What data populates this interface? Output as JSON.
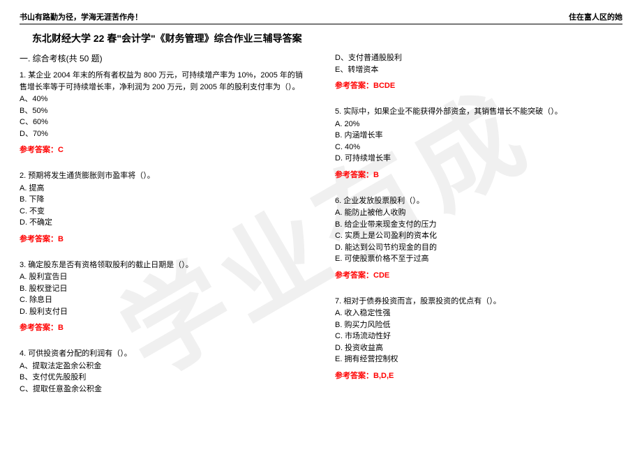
{
  "watermark": "学业有成",
  "header": {
    "left": "书山有路勤为径，学海无涯苦作舟！",
    "right": "住在富人区的她"
  },
  "title": "东北财经大学 22 春\"会计学\"《财务管理》综合作业三辅导答案",
  "section": "一. 综合考核(共 50 题)",
  "answerPrefix": "参考答案：",
  "left": {
    "q1": {
      "stem": "1. 某企业 2004 年末的所有者权益为 800 万元，可持续增产率为 10%，2005 年的销售增长率等于可持续增长率，净利润为 200 万元，则 2005 年的股利支付率为（）。",
      "a": "A、40%",
      "b": "B、50%",
      "c": "C、60%",
      "d": "D、70%",
      "ans": "C"
    },
    "q2": {
      "stem": "2. 预期将发生通货膨胀则市盈率将（）。",
      "a": "A. 提高",
      "b": "B. 下降",
      "c": "C. 不变",
      "d": "D. 不确定",
      "ans": "B"
    },
    "q3": {
      "stem": "3. 确定股东是否有资格领取股利的截止日期是（）。",
      "a": "A. 股利宣告日",
      "b": "B. 股权登记日",
      "c": "C. 除息日",
      "d": "D. 股利支付日",
      "ans": "B"
    },
    "q4": {
      "stem": "4. 可供投资者分配的利润有（）。",
      "a": "A、提取法定盈余公积金",
      "b": "B、支付优先股股利",
      "c": "C、提取任意盈余公积金"
    }
  },
  "right": {
    "q4cont": {
      "d": "D、支付普通股股利",
      "e": "E、转增资本",
      "ans": "BCDE"
    },
    "q5": {
      "stem": "5. 实际中，如果企业不能获得外部资金，其销售增长不能突破（）。",
      "a": "A. 20%",
      "b": "B. 内涵增长率",
      "c": "C. 40%",
      "d": "D. 可持续增长率",
      "ans": "B"
    },
    "q6": {
      "stem": "6. 企业发放股票股利（）。",
      "a": "A. 能防止被他人收购",
      "b": "B. 给企业带来现金支付的压力",
      "c": "C. 实质上是公司盈利的资本化",
      "d": "D. 能达到公司节约现金的目的",
      "e": "E. 可使股票价格不至于过高",
      "ans": "CDE"
    },
    "q7": {
      "stem": "7. 相对于债券投资而言，股票投资的优点有（）。",
      "a": "A. 收入稳定性强",
      "b": "B. 购买力风险低",
      "c": "C. 市场流动性好",
      "d": "D. 投资收益高",
      "e": "E. 拥有经营控制权",
      "ans": "B,D,E"
    }
  }
}
